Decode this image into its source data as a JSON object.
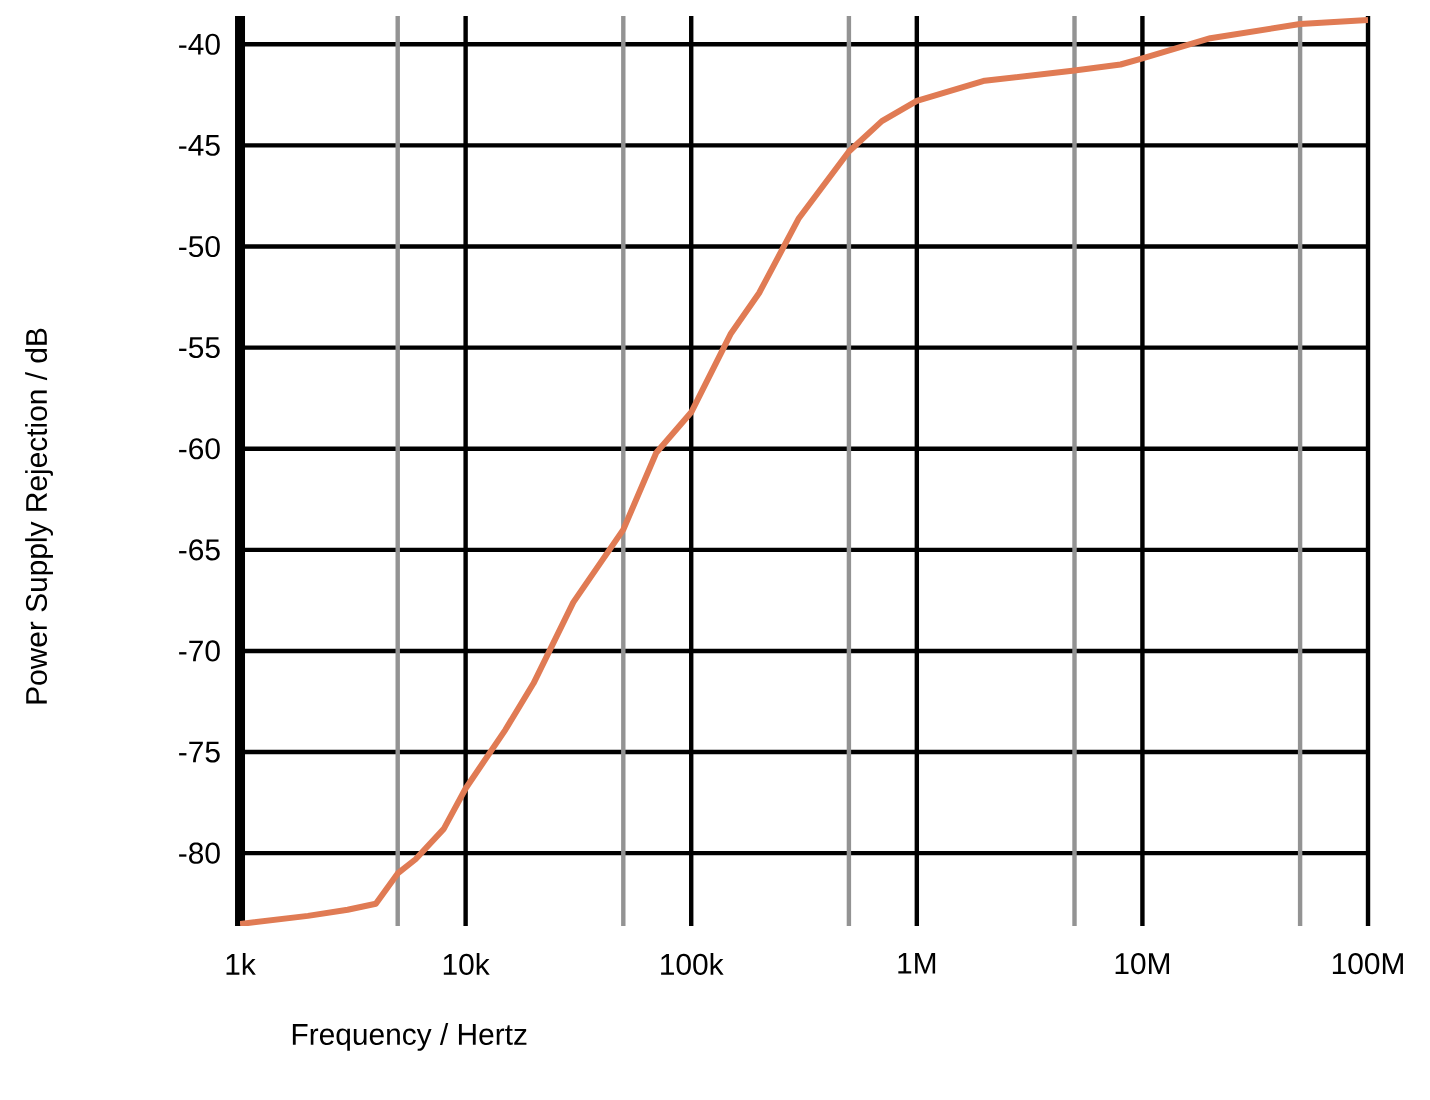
{
  "chart_data": {
    "type": "line",
    "xlabel": "Frequency / Hertz",
    "ylabel": "Power Supply Rejection / dB",
    "log": "x",
    "grid": true,
    "marker": "none",
    "line_style": "solid",
    "xlim": [
      1000,
      100000000
    ],
    "ylim": [
      -83.6,
      -38.6
    ],
    "xticks": [
      {
        "value": 1000,
        "label": "1k"
      },
      {
        "value": 5000,
        "label": null
      },
      {
        "value": 10000,
        "label": "10k"
      },
      {
        "value": 50000,
        "label": null
      },
      {
        "value": 100000,
        "label": "100k"
      },
      {
        "value": 500000,
        "label": null
      },
      {
        "value": 1000000,
        "label": "1M"
      },
      {
        "value": 5000000,
        "label": null
      },
      {
        "value": 10000000,
        "label": "10M"
      },
      {
        "value": 50000000,
        "label": null
      },
      {
        "value": 100000000,
        "label": "100M"
      }
    ],
    "yticks": [
      -80,
      -75,
      -70,
      -65,
      -60,
      -55,
      -50,
      -45,
      -40
    ],
    "x": [
      1000,
      2000,
      3000,
      4000,
      5000,
      6000,
      8000,
      10000,
      15000,
      20000,
      30000,
      50000,
      70000,
      100000,
      150000,
      200000,
      300000,
      500000,
      700000,
      1000000,
      2000000,
      5000000,
      8000000,
      10000000,
      20000000,
      50000000,
      100000000
    ],
    "series": [
      {
        "color": "#e07b54",
        "values": [
          -83.5,
          -83.1,
          -82.8,
          -82.5,
          -81.0,
          -80.3,
          -78.8,
          -76.8,
          -73.9,
          -71.6,
          -67.6,
          -64.0,
          -60.2,
          -58.2,
          -54.3,
          -52.3,
          -48.6,
          -45.3,
          -43.8,
          -42.8,
          -41.8,
          -41.3,
          -41.0,
          -40.7,
          -39.7,
          -39.0,
          -38.8
        ]
      }
    ]
  }
}
